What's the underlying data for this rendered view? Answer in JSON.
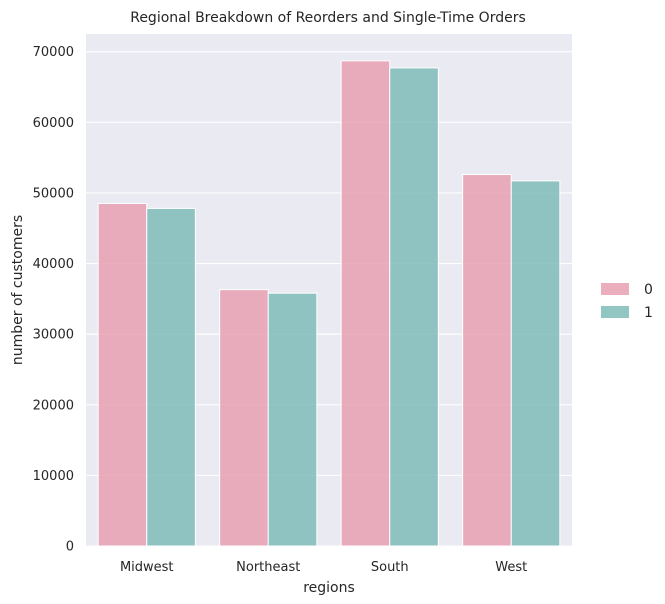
{
  "chart_data": {
    "type": "bar",
    "title": "Regional Breakdown of Reorders and Single-Time Orders",
    "xlabel": "regions",
    "ylabel": "number of customers",
    "categories": [
      "Midwest",
      "Northeast",
      "South",
      "West"
    ],
    "series": [
      {
        "name": "0",
        "values": [
          48500,
          36300,
          68700,
          52600
        ],
        "color": "#e8a0b2"
      },
      {
        "name": "1",
        "values": [
          47800,
          35800,
          67700,
          51700
        ],
        "color": "#7fbcb8"
      }
    ],
    "ylim": [
      0,
      72500
    ],
    "yticks": [
      0,
      10000,
      20000,
      30000,
      40000,
      50000,
      60000,
      70000
    ],
    "grid": true,
    "legend_position": "right",
    "background": "#eaeaf2"
  }
}
